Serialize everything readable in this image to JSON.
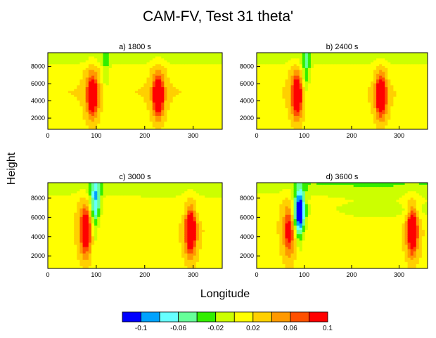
{
  "chart_data": {
    "type": "heatmap",
    "title": "CAM-FV, Test 31 theta'",
    "xlabel": "Longitude",
    "ylabel": "Height",
    "xlim": [
      0,
      360
    ],
    "ylim": [
      700,
      9600
    ],
    "x_ticks": [
      "0",
      "100",
      "200",
      "300"
    ],
    "y_ticks": [
      "2000",
      "4000",
      "6000",
      "8000"
    ],
    "levels": [
      -0.12,
      -0.1,
      -0.08,
      -0.06,
      -0.04,
      -0.02,
      0.0,
      0.02,
      0.04,
      0.06,
      0.08,
      0.1,
      0.12
    ],
    "colorbar_labels": [
      "-0.1",
      "-0.06",
      "-0.02",
      "0.02",
      "0.06",
      "0.1"
    ],
    "colors": [
      "#0000ff",
      "#00a2ff",
      "#66ffff",
      "#66ff99",
      "#33ee00",
      "#ccff00",
      "#ffff00",
      "#ffd000",
      "#ff9900",
      "#ff5000",
      "#ff0000"
    ],
    "panels": [
      {
        "title": "a) 1800 s",
        "cold_center": 120,
        "cold_amp": -0.02,
        "cold_h": 8600,
        "peaks": [
          {
            "x": 92,
            "amp": 0.11
          },
          {
            "x": 228,
            "amp": 0.12
          }
        ],
        "shear": 0.0,
        "stem": 0.02,
        "top_green": 0.3
      },
      {
        "title": "b) 2400 s",
        "cold_center": 104,
        "cold_amp": -0.035,
        "cold_h": 8200,
        "peaks": [
          {
            "x": 85,
            "amp": 0.11
          },
          {
            "x": 262,
            "amp": 0.12
          }
        ],
        "shear": 0.25,
        "stem": 0.03,
        "top_green": 0.5
      },
      {
        "title": "c) 3000 s",
        "cold_center": 98,
        "cold_amp": -0.07,
        "cold_h": 7800,
        "peaks": [
          {
            "x": 78,
            "amp": 0.1
          },
          {
            "x": 295,
            "amp": 0.12
          }
        ],
        "shear": 0.55,
        "stem": 0.04,
        "top_green": 0.7
      },
      {
        "title": "d) 3600 s",
        "cold_center": 90,
        "cold_amp": -0.12,
        "cold_h": 6600,
        "peaks": [
          {
            "x": 68,
            "amp": 0.07
          },
          {
            "x": 328,
            "amp": 0.12
          }
        ],
        "shear": 0.9,
        "stem": 0.05,
        "top_green": 1.0
      }
    ]
  }
}
